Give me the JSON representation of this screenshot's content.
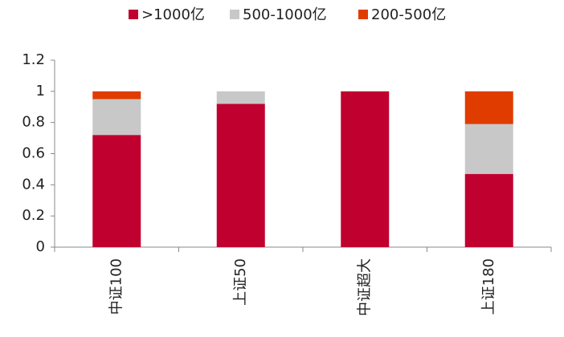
{
  "chart_data": {
    "type": "stacked-bar",
    "categories": [
      "中证100",
      "上证50",
      "中证超大",
      "上证180"
    ],
    "series": [
      {
        "name": ">1000亿",
        "color": "#c0002f",
        "values": [
          0.72,
          0.92,
          1,
          0.47
        ]
      },
      {
        "name": "500-1000亿",
        "color": "#c8c8c8",
        "values": [
          0.23,
          0.08,
          0,
          0.32
        ]
      },
      {
        "name": "200-500亿",
        "color": "#e03c00",
        "values": [
          0.05,
          0,
          0,
          0.21
        ]
      }
    ],
    "ylim": [
      0,
      1.2
    ],
    "yticks": [
      0,
      0.2,
      0.4,
      0.6,
      0.8,
      1,
      1.2
    ],
    "legend": "top"
  }
}
